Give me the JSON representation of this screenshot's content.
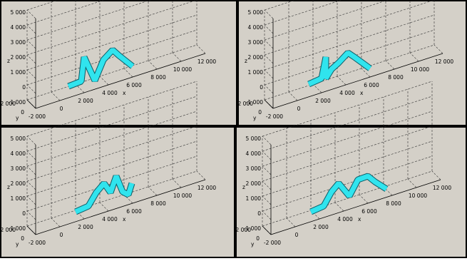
{
  "panels": [
    {
      "z_ticks": [
        "5 000",
        "4 000",
        "3 000",
        "2 000",
        "1 000",
        "0",
        "-1 000"
      ],
      "y_ticks": [
        "2 000",
        "0"
      ],
      "x_ticks": [
        "-2 000",
        "0",
        "2 000",
        "4 000",
        "6 000",
        "8 000",
        "10 000",
        "12 000"
      ],
      "z_label": "z",
      "y_label": "y",
      "x_label": "x"
    },
    {
      "z_ticks": [
        "5 000",
        "4 000",
        "3 000",
        "2 000",
        "1 000",
        "0",
        "-1 000"
      ],
      "y_ticks": [
        "2 000",
        "0"
      ],
      "x_ticks": [
        "-2 000",
        "0",
        "2 000",
        "4 000",
        "6 000",
        "8 000",
        "10 000",
        "12 000"
      ],
      "z_label": "z",
      "y_label": "y",
      "x_label": "x"
    },
    {
      "z_ticks": [
        "5 000",
        "4 000",
        "3 000",
        "2 000",
        "1 000",
        "0",
        "-1 000"
      ],
      "y_ticks": [
        "2 000",
        "0"
      ],
      "x_ticks": [
        "-2 000",
        "0",
        "2 000",
        "4 000",
        "6 000",
        "8 000",
        "10 000",
        "12 000"
      ],
      "z_label": "z",
      "y_label": "y",
      "x_label": "x"
    },
    {
      "z_ticks": [
        "5 000",
        "4 000",
        "3 000",
        "2 000",
        "1 000",
        "0",
        "-1 000"
      ],
      "y_ticks": [
        "2 000",
        "0"
      ],
      "x_ticks": [
        "-2 000",
        "0",
        "2 000",
        "4 000",
        "6 000",
        "8 000",
        "10 000",
        "12 000"
      ],
      "z_label": "z",
      "y_label": "y",
      "x_label": "x"
    }
  ]
}
